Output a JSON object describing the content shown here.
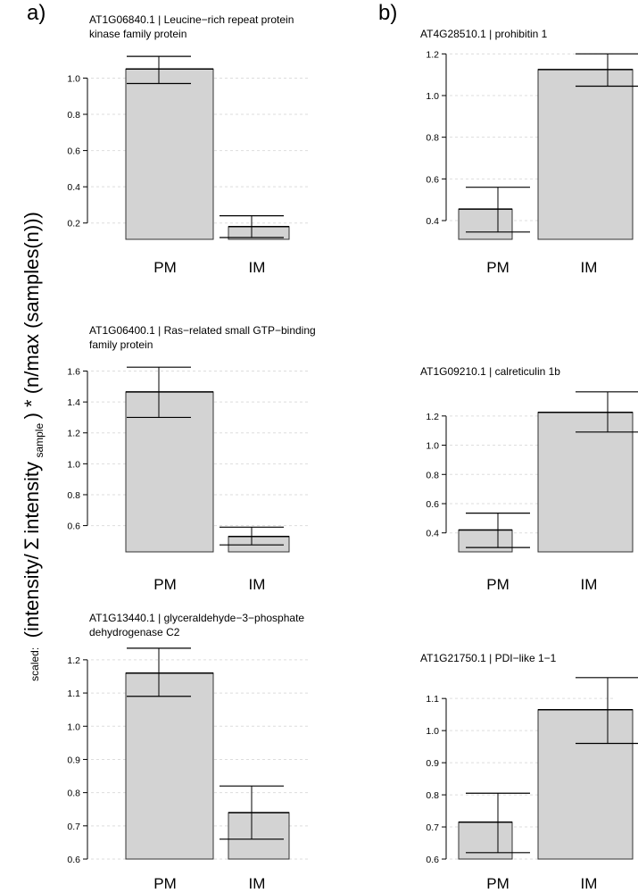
{
  "figure": {
    "panel_labels": [
      "a)",
      "b)"
    ],
    "ylabel": {
      "prefix": "scaled:",
      "part1": "(intensity/",
      "sigma": "Σ",
      "part2": " intensity",
      "subscript": "sample",
      "part3": ") * (n/max (samples(n)))"
    }
  },
  "colors": {
    "bar_fill": "#d3d3d3",
    "bar_stroke": "#333333",
    "axis": "#000000",
    "grid": "#dddddd"
  },
  "chart_data": [
    {
      "type": "bar",
      "panel": "a",
      "column": 0,
      "row": 0,
      "title_lines": [
        "AT1G06840.1 | Leucine−rich repeat protein",
        "kinase family protein"
      ],
      "categories": [
        "PM",
        "IM"
      ],
      "values": [
        1.05,
        0.18
      ],
      "error_low": [
        0.97,
        0.12
      ],
      "error_high": [
        1.12,
        0.24
      ],
      "ylim": [
        0.11,
        1.155
      ],
      "yticks": [
        0.2,
        0.4,
        0.6,
        0.8,
        1.0
      ],
      "ytick_labels": [
        "0.2",
        "0.4",
        "0.6",
        "0.8",
        "1.0"
      ],
      "grid": true
    },
    {
      "type": "bar",
      "panel": "a",
      "column": 0,
      "row": 1,
      "title_lines": [
        "AT1G06400.1 | Ras−related small GTP−binding",
        "family protein"
      ],
      "categories": [
        "PM",
        "IM"
      ],
      "values": [
        1.465,
        0.53
      ],
      "error_low": [
        1.3,
        0.475
      ],
      "error_high": [
        1.625,
        0.59
      ],
      "ylim": [
        0.43,
        1.655
      ],
      "yticks": [
        0.6,
        0.8,
        1.0,
        1.2,
        1.4,
        1.6
      ],
      "ytick_labels": [
        "0.6",
        "0.8",
        "1.0",
        "1.2",
        "1.4",
        "1.6"
      ],
      "grid": true
    },
    {
      "type": "bar",
      "panel": "a",
      "column": 0,
      "row": 2,
      "title_lines": [
        "AT1G13440.1 | glyceraldehyde−3−phosphate",
        "dehydrogenase C2"
      ],
      "categories": [
        "PM",
        "IM"
      ],
      "values": [
        1.16,
        0.74
      ],
      "error_low": [
        1.09,
        0.66
      ],
      "error_high": [
        1.235,
        0.82
      ],
      "ylim": [
        0.6,
        1.24
      ],
      "yticks": [
        0.6,
        0.7,
        0.8,
        0.9,
        1.0,
        1.1,
        1.2
      ],
      "ytick_labels": [
        "0.6",
        "0.7",
        "0.8",
        "0.9",
        "1.0",
        "1.1",
        "1.2"
      ],
      "grid": true
    },
    {
      "type": "bar",
      "panel": "b",
      "column": 1,
      "row": 0,
      "title_lines": [
        "AT4G28510.1 |  prohibitin 1"
      ],
      "categories": [
        "PM",
        "IM"
      ],
      "values": [
        0.455,
        1.125
      ],
      "error_low": [
        0.345,
        1.045
      ],
      "error_high": [
        0.56,
        1.2
      ],
      "ylim": [
        0.31,
        1.21
      ],
      "yticks": [
        0.4,
        0.6,
        0.8,
        1.0,
        1.2
      ],
      "ytick_labels": [
        "0.4",
        "0.6",
        "0.8",
        "1.0",
        "1.2"
      ],
      "grid": true
    },
    {
      "type": "bar",
      "panel": "b",
      "column": 1,
      "row": 1,
      "title_lines": [
        "AT1G09210.1 |  calreticulin 1b"
      ],
      "categories": [
        "PM",
        "IM"
      ],
      "values": [
        0.42,
        1.225
      ],
      "error_low": [
        0.3,
        1.09
      ],
      "error_high": [
        0.535,
        1.365
      ],
      "ylim": [
        0.27,
        1.37
      ],
      "yticks": [
        0.4,
        0.6,
        0.8,
        1.0,
        1.2
      ],
      "ytick_labels": [
        "0.4",
        "0.6",
        "0.8",
        "1.0",
        "1.2"
      ],
      "grid": true
    },
    {
      "type": "bar",
      "panel": "b",
      "column": 1,
      "row": 2,
      "title_lines": [
        "AT1G21750.1 | PDI−like 1−1"
      ],
      "categories": [
        "PM",
        "IM"
      ],
      "values": [
        0.715,
        1.065
      ],
      "error_low": [
        0.62,
        0.96
      ],
      "error_high": [
        0.805,
        1.165
      ],
      "ylim": [
        0.6,
        1.17
      ],
      "yticks": [
        0.6,
        0.7,
        0.8,
        0.9,
        1.0,
        1.1
      ],
      "ytick_labels": [
        "0.6",
        "0.7",
        "0.8",
        "0.9",
        "1.0",
        "1.1"
      ],
      "grid": true
    }
  ]
}
